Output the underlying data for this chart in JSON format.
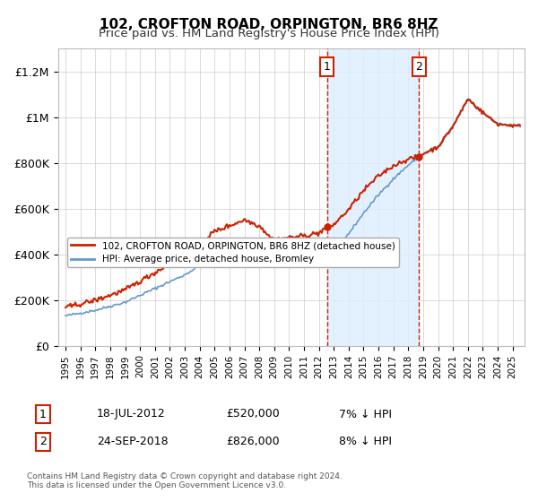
{
  "title": "102, CROFTON ROAD, ORPINGTON, BR6 8HZ",
  "subtitle": "Price paid vs. HM Land Registry's House Price Index (HPI)",
  "xlabel": "",
  "ylabel": "",
  "ylim": [
    0,
    1300000
  ],
  "yticks": [
    0,
    200000,
    400000,
    600000,
    800000,
    1000000,
    1200000
  ],
  "ytick_labels": [
    "£0",
    "£200K",
    "£400K",
    "£600K",
    "£800K",
    "£1M",
    "£1.2M"
  ],
  "sale1_year": 2012.54,
  "sale1_price": 520000,
  "sale2_year": 2018.73,
  "sale2_price": 826000,
  "background_color": "#ffffff",
  "grid_color": "#cccccc",
  "hpi_line_color": "#6699cc",
  "price_line_color": "#cc2200",
  "shade_color": "#ddeeff",
  "footnote": "Contains HM Land Registry data © Crown copyright and database right 2024.\nThis data is licensed under the Open Government Licence v3.0.",
  "legend1": "102, CROFTON ROAD, ORPINGTON, BR6 8HZ (detached house)",
  "legend2": "HPI: Average price, detached house, Bromley",
  "annotation1_label": "18-JUL-2012",
  "annotation1_price": "£520,000",
  "annotation1_hpi": "7% ↓ HPI",
  "annotation2_label": "24-SEP-2018",
  "annotation2_price": "£826,000",
  "annotation2_hpi": "8% ↓ HPI"
}
